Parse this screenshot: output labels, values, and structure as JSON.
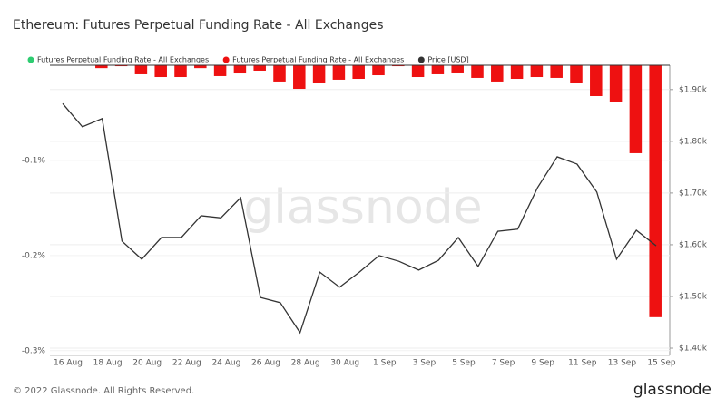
{
  "chart_data": {
    "type": "bar-line",
    "title": "Ethereum: Futures Perpetual Funding Rate - All Exchanges",
    "watermark": "glassnode",
    "footer": "© 2022 Glassnode. All Rights Reserved.",
    "logo": "glassnode",
    "categories": [
      "16 Aug",
      null,
      "18 Aug",
      null,
      "20 Aug",
      null,
      "22 Aug",
      null,
      "24 Aug",
      null,
      "26 Aug",
      null,
      "28 Aug",
      null,
      "30 Aug",
      null,
      "1 Sep",
      null,
      "3 Sep",
      null,
      "5 Sep",
      null,
      "7 Sep",
      null,
      "9 Sep",
      null,
      "11 Sep",
      null,
      "13 Sep",
      null,
      "15 Sep"
    ],
    "series": [
      {
        "name": "Futures Perpetual Funding Rate - All Exchanges",
        "color": "#2ecc71",
        "kind": "bar",
        "values": [
          null,
          null,
          null,
          null,
          null,
          null,
          null,
          null,
          null,
          null,
          null,
          null,
          null,
          null,
          null,
          null,
          null,
          null,
          null,
          null,
          null,
          null,
          null,
          null,
          null,
          null,
          null,
          null,
          null,
          null,
          null
        ]
      },
      {
        "name": "Futures Perpetual Funding Rate - All Exchanges",
        "color": "#ee1111",
        "kind": "bar",
        "values": [
          null,
          -0.003,
          -0.001,
          -0.0095,
          -0.0124,
          -0.0124,
          -0.003,
          -0.0114,
          -0.0086,
          -0.0057,
          -0.0171,
          -0.0248,
          -0.0181,
          -0.0152,
          -0.0143,
          -0.0105,
          -0.001,
          -0.0124,
          -0.0095,
          -0.0076,
          -0.0133,
          -0.0171,
          -0.0143,
          -0.0124,
          -0.0133,
          -0.0181,
          -0.0324,
          -0.039,
          -0.0924,
          -0.2648,
          null
        ]
      },
      {
        "name": "Price [USD]",
        "color": "#333333",
        "kind": "line",
        "axis": "y2",
        "values": [
          1873,
          1828,
          1844,
          1607,
          1572,
          1614,
          1614,
          1656,
          1652,
          1691,
          1498,
          1488,
          1430,
          1547,
          1518,
          1547,
          1579,
          1568,
          1551,
          1570,
          1614,
          1558,
          1626,
          1630,
          1710,
          1770,
          1756,
          1702,
          1572,
          1628,
          1598
        ]
      }
    ],
    "ylim": [
      -0.305,
      0
    ],
    "yticks": [
      {
        "value": -0.1,
        "label": "-0.1%"
      },
      {
        "value": -0.2,
        "label": "-0.2%"
      },
      {
        "value": -0.3,
        "label": "-0.3%"
      }
    ],
    "y2lim": [
      1386,
      1947
    ],
    "y2ticks": [
      {
        "value": 1400,
        "label": "$1.40k"
      },
      {
        "value": 1500,
        "label": "$1.50k"
      },
      {
        "value": 1600,
        "label": "$1.60k"
      },
      {
        "value": 1700,
        "label": "$1.70k"
      },
      {
        "value": 1800,
        "label": "$1.80k"
      },
      {
        "value": 1900,
        "label": "$1.90k"
      }
    ],
    "grid": true
  }
}
